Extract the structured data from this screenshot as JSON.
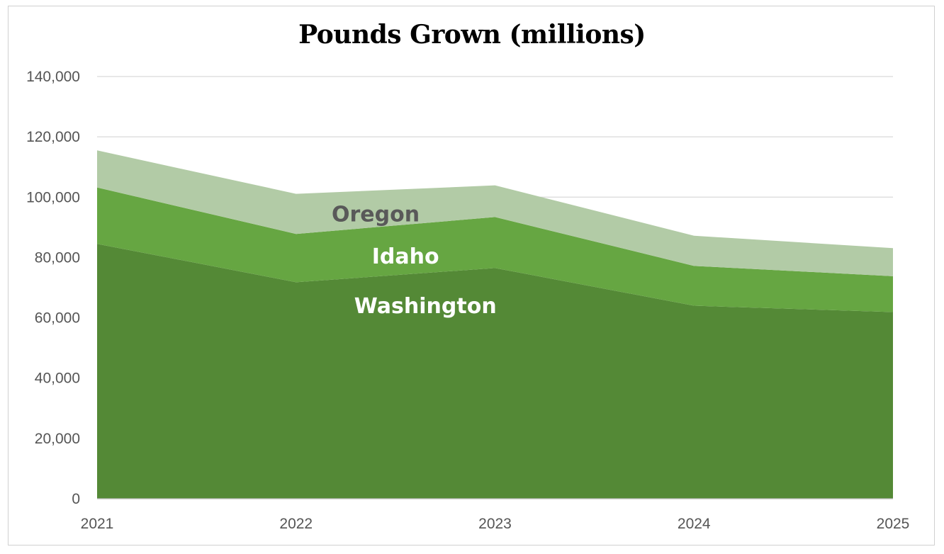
{
  "chart_data": {
    "type": "area",
    "stacked": true,
    "title": "Pounds Grown (millions)",
    "xlabel": "",
    "ylabel": "",
    "categories": [
      "2021",
      "2022",
      "2023",
      "2024",
      "2025"
    ],
    "ylim": [
      0,
      140000
    ],
    "yticks": [
      0,
      20000,
      40000,
      60000,
      80000,
      100000,
      120000,
      140000
    ],
    "ytick_labels": [
      "0",
      "20,000",
      "40,000",
      "60,000",
      "80,000",
      "100,000",
      "120,000",
      "140,000"
    ],
    "grid": true,
    "legend": "none (series labeled inline)",
    "series": [
      {
        "name": "Washington",
        "values": [
          84500,
          71800,
          76500,
          64000,
          61900
        ],
        "color": "#548936",
        "label_color": "#ffffff",
        "label_at": [
          1.65,
          61500
        ]
      },
      {
        "name": "Idaho",
        "values": [
          18700,
          16000,
          16900,
          13200,
          11900
        ],
        "color": "#66a642",
        "label_color": "#ffffff",
        "label_at": [
          1.55,
          78000
        ]
      },
      {
        "name": "Oregon",
        "values": [
          12300,
          13300,
          10500,
          10000,
          9300
        ],
        "color": "#b2cba6",
        "label_color": "#595959",
        "label_at": [
          1.4,
          92000
        ]
      }
    ]
  }
}
